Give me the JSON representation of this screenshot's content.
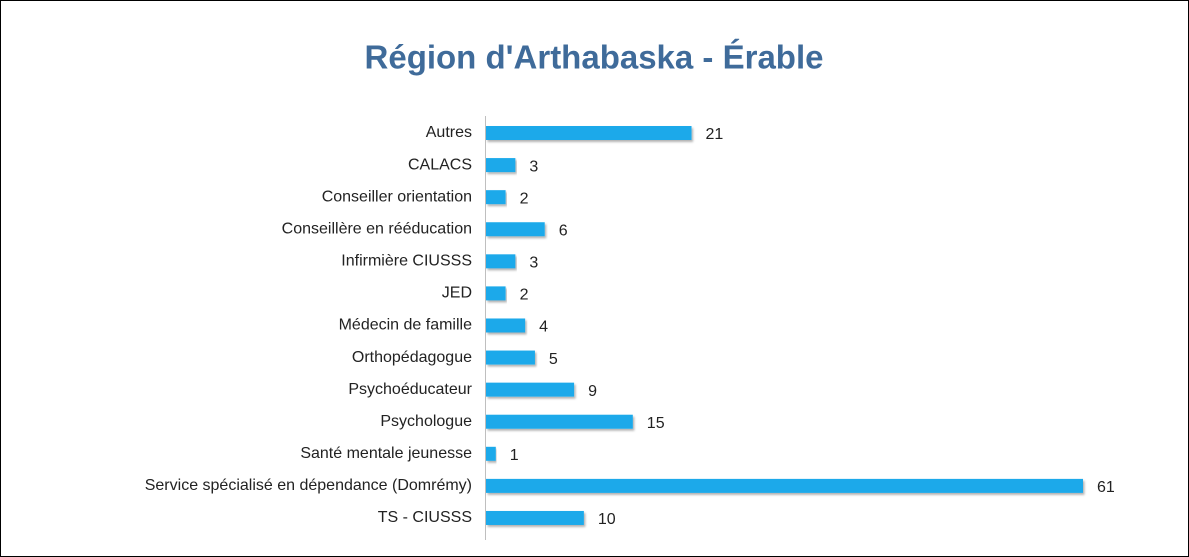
{
  "chart_data": {
    "type": "bar",
    "orientation": "horizontal",
    "title": "Région d'Arthabaska - Érable",
    "categories": [
      "Autres",
      "CALACS",
      "Conseiller orientation",
      "Conseillère en rééducation",
      "Infirmière CIUSSS",
      "JED",
      "Médecin de famille",
      "Orthopédagogue",
      "Psychoéducateur",
      "Psychologue",
      "Santé mentale jeunesse",
      "Service spécialisé en dépendance (Domrémy)",
      "TS - CIUSSS"
    ],
    "values": [
      21,
      3,
      2,
      6,
      3,
      2,
      4,
      5,
      9,
      15,
      1,
      61,
      10
    ],
    "color": "#1aa9ea"
  }
}
